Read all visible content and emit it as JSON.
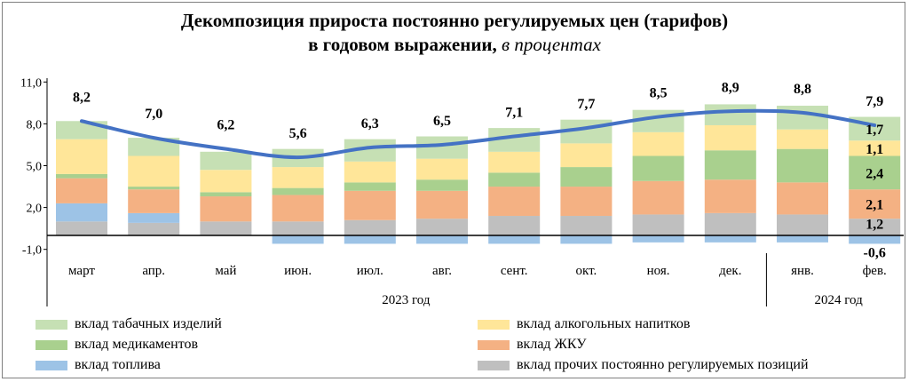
{
  "title": {
    "line1": "Декомпозиция прироста постоянно регулируемых цен (тарифов)",
    "line2_main": "в годовом выражении,",
    "line2_unit": "в процентах"
  },
  "colors": {
    "tobacco": "#c6e0b4",
    "alcohol": "#ffe699",
    "medicines": "#a9d08e",
    "housing": "#f4b183",
    "fuel": "#9dc3e6",
    "other": "#bfbfbf",
    "total_line": "#4472c4"
  },
  "chart_data": {
    "type": "stacked_bar_with_line",
    "categories": [
      "март",
      "апр.",
      "май",
      "июн.",
      "июл.",
      "авг.",
      "сент.",
      "окт.",
      "ноя.",
      "дек.",
      "янв.",
      "фев."
    ],
    "year_groups": [
      {
        "label": "2023 год",
        "from": 0,
        "to": 9
      },
      {
        "label": "2024 год",
        "from": 10,
        "to": 11
      }
    ],
    "y_ticks": [
      "11,0",
      "8,0",
      "5,0",
      "2,0",
      "-1,0"
    ],
    "ylim": [
      -1,
      11
    ],
    "series": [
      {
        "name": "вклад прочих постоянно регулируемых  позиций",
        "key": "other",
        "values": [
          1.0,
          0.9,
          1.0,
          1.0,
          1.1,
          1.2,
          1.4,
          1.4,
          1.5,
          1.6,
          1.5,
          1.2
        ]
      },
      {
        "name": "вклад топлива",
        "key": "fuel",
        "values": [
          1.3,
          0.7,
          0.0,
          -0.6,
          -0.6,
          -0.6,
          -0.6,
          -0.6,
          -0.5,
          -0.5,
          -0.5,
          -0.6
        ]
      },
      {
        "name": "вклад ЖКУ",
        "key": "housing",
        "values": [
          1.8,
          1.7,
          1.8,
          1.9,
          2.1,
          2.0,
          2.1,
          2.1,
          2.4,
          2.4,
          2.3,
          2.1
        ]
      },
      {
        "name": "вклад медикаментов",
        "key": "medicines",
        "values": [
          0.3,
          0.2,
          0.3,
          0.5,
          0.6,
          0.8,
          1.0,
          1.4,
          1.8,
          2.1,
          2.4,
          2.4
        ]
      },
      {
        "name": "вклад алкогольных напитков",
        "key": "alcohol",
        "values": [
          2.5,
          2.2,
          1.6,
          1.5,
          1.5,
          1.5,
          1.5,
          1.7,
          1.7,
          1.8,
          1.4,
          1.1
        ]
      },
      {
        "name": "вклад табачных изделий",
        "key": "tobacco",
        "values": [
          1.3,
          1.3,
          1.3,
          1.3,
          1.6,
          1.6,
          1.7,
          1.7,
          1.6,
          1.5,
          1.7,
          1.7
        ]
      }
    ],
    "total": {
      "values": [
        8.2,
        7.0,
        6.2,
        5.6,
        6.3,
        6.5,
        7.1,
        7.7,
        8.5,
        8.9,
        8.8,
        7.9
      ],
      "labels": [
        "8,2",
        "7,0",
        "6,2",
        "5,6",
        "6,3",
        "6,5",
        "7,1",
        "7,7",
        "8,5",
        "8,9",
        "8,8",
        "7,9"
      ]
    },
    "last_bar_labels": [
      {
        "series": "tobacco",
        "text": "1,7"
      },
      {
        "series": "alcohol",
        "text": "1,1"
      },
      {
        "series": "medicines",
        "text": "2,4"
      },
      {
        "series": "housing",
        "text": "2,1"
      },
      {
        "series": "other",
        "text": "1,2"
      },
      {
        "series": "fuel",
        "text": "-0,6"
      }
    ]
  },
  "legend": {
    "left": [
      {
        "key": "tobacco",
        "label": "вклад табачных изделий"
      },
      {
        "key": "medicines",
        "label": "вклад медикаментов"
      },
      {
        "key": "fuel",
        "label": "вклад топлива"
      }
    ],
    "right": [
      {
        "key": "alcohol",
        "label": "вклад алкогольных напитков"
      },
      {
        "key": "housing",
        "label": "вклад ЖКУ"
      },
      {
        "key": "other",
        "label": "вклад прочих постоянно регулируемых  позиций"
      }
    ]
  }
}
